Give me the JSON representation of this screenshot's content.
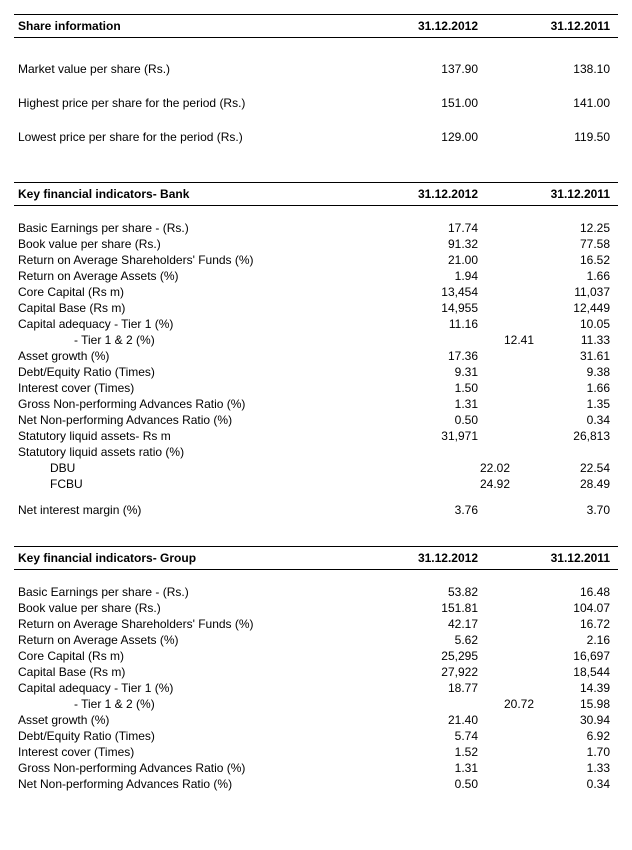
{
  "col1": "31.12.2012",
  "col2": "31.12.2011",
  "share": {
    "title": "Share information",
    "rows": [
      {
        "label": "Market value per share (Rs.)",
        "v1": "137.90",
        "v2": "138.10"
      },
      {
        "label": "Highest price per share for the period (Rs.)",
        "v1": "151.00",
        "v2": "141.00"
      },
      {
        "label": "Lowest price per share for the period (Rs.)",
        "v1": "129.00",
        "v2": "119.50"
      }
    ]
  },
  "bank": {
    "title": "Key financial indicators- Bank",
    "rows": [
      {
        "label": "Basic Earnings per share -  (Rs.)",
        "v1": "17.74",
        "v2": "12.25"
      },
      {
        "label": "Book value per share (Rs.)",
        "v1": "91.32",
        "v2": "77.58"
      },
      {
        "label": "Return on Average Shareholders' Funds (%)",
        "v1": "21.00",
        "v2": "16.52"
      },
      {
        "label": "Return on Average Assets (%)",
        "v1": "1.94",
        "v2": "1.66"
      },
      {
        "label": "Core Capital (Rs m)",
        "v1": "13,454",
        "v2": "11,037"
      },
      {
        "label": "Capital Base (Rs m)",
        "v1": "14,955",
        "v2": "12,449"
      },
      {
        "label": "Capital adequacy - Tier 1 (%)",
        "v1": "11.16",
        "v2": "10.05"
      },
      {
        "label": "- Tier 1 & 2 (%)",
        "v1": "12.41",
        "v2": "11.33",
        "indent": 1
      },
      {
        "label": "Asset growth (%)",
        "v1": "17.36",
        "v2": "31.61"
      },
      {
        "label": "Debt/Equity Ratio (Times)",
        "v1": "9.31",
        "v2": "9.38"
      },
      {
        "label": "Interest cover (Times)",
        "v1": "1.50",
        "v2": "1.66"
      },
      {
        "label": "Gross Non-performing Advances Ratio (%)",
        "v1": "1.31",
        "v2": "1.35"
      },
      {
        "label": "Net Non-performing Advances Ratio (%)",
        "v1": "0.50",
        "v2": "0.34"
      },
      {
        "label": "Statutory liquid assets- Rs m",
        "v1": "31,971",
        "v2": "26,813"
      },
      {
        "label": "Statutory liquid assets ratio (%)",
        "v1": "",
        "v2": ""
      },
      {
        "label": "DBU",
        "v1": "22.02",
        "v2": "22.54",
        "indent": 2
      },
      {
        "label": "FCBU",
        "v1": "24.92",
        "v2": "28.49",
        "indent": 2
      }
    ],
    "nim": {
      "label": "Net interest margin (%)",
      "v1": "3.76",
      "v2": "3.70"
    }
  },
  "group": {
    "title": "Key financial indicators- Group",
    "rows": [
      {
        "label": "Basic Earnings per share -  (Rs.)",
        "v1": "53.82",
        "v2": "16.48"
      },
      {
        "label": "Book value per share (Rs.)",
        "v1": "151.81",
        "v2": "104.07"
      },
      {
        "label": "Return on Average Shareholders' Funds (%)",
        "v1": "42.17",
        "v2": "16.72"
      },
      {
        "label": "Return on Average Assets (%)",
        "v1": "5.62",
        "v2": "2.16"
      },
      {
        "label": "Core Capital (Rs m)",
        "v1": "25,295",
        "v2": "16,697"
      },
      {
        "label": "Capital Base (Rs m)",
        "v1": "27,922",
        "v2": "18,544"
      },
      {
        "label": "Capital adequacy - Tier 1 (%)",
        "v1": "18.77",
        "v2": "14.39"
      },
      {
        "label": "- Tier 1 & 2 (%)",
        "v1": "20.72",
        "v2": "15.98",
        "indent": 1
      },
      {
        "label": "Asset growth (%)",
        "v1": "21.40",
        "v2": "30.94"
      },
      {
        "label": "Debt/Equity Ratio (Times)",
        "v1": "5.74",
        "v2": "6.92"
      },
      {
        "label": "Interest cover (Times)",
        "v1": "1.52",
        "v2": "1.70"
      },
      {
        "label": "Gross Non-performing Advances Ratio (%)",
        "v1": "1.31",
        "v2": "1.33"
      },
      {
        "label": "Net Non-performing Advances Ratio (%)",
        "v1": "0.50",
        "v2": "0.34"
      }
    ]
  }
}
